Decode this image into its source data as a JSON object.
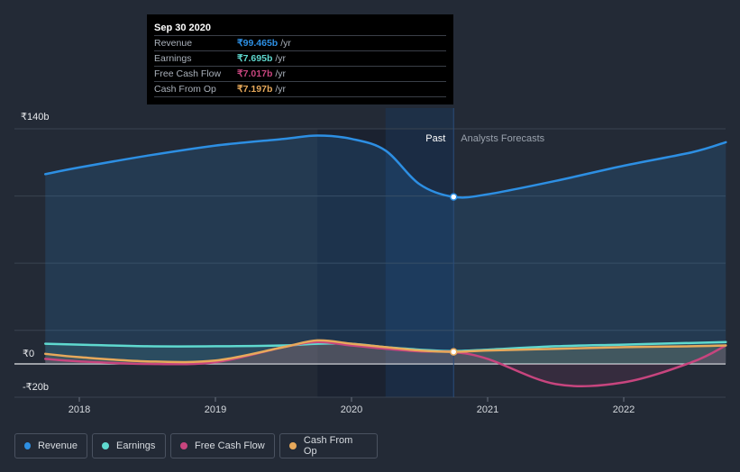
{
  "tooltip": {
    "date": "Sep 30 2020",
    "rows": [
      {
        "name": "Revenue",
        "value": "₹99.465b",
        "unit": "/yr",
        "color": "#2d8fe3"
      },
      {
        "name": "Earnings",
        "value": "₹7.695b",
        "unit": "/yr",
        "color": "#5fd9cf"
      },
      {
        "name": "Free Cash Flow",
        "value": "₹7.017b",
        "unit": "/yr",
        "color": "#c7457e"
      },
      {
        "name": "Cash From Op",
        "value": "₹7.197b",
        "unit": "/yr",
        "color": "#e7a95b"
      }
    ]
  },
  "labels": {
    "past": "Past",
    "forecast": "Analysts Forecasts"
  },
  "legend": [
    {
      "name": "Revenue",
      "color": "#2d8fe3"
    },
    {
      "name": "Earnings",
      "color": "#5fd9cf"
    },
    {
      "name": "Free Cash Flow",
      "color": "#c7457e"
    },
    {
      "name": "Cash From Op",
      "color": "#e7a95b"
    }
  ],
  "chart_data": {
    "type": "line",
    "y_ticks": [
      "₹140b",
      "₹0",
      "-₹20b"
    ],
    "ylim": [
      -20,
      140
    ],
    "x_ticks": [
      "2018",
      "2019",
      "2020",
      "2021",
      "2022"
    ],
    "xlim": [
      2017.7,
      2022.75
    ],
    "highlight_date": 2020.75,
    "series": [
      {
        "name": "Revenue",
        "color": "#2d8fe3",
        "x": [
          2017.75,
          2018.0,
          2018.5,
          2019.0,
          2019.5,
          2019.75,
          2020.0,
          2020.25,
          2020.5,
          2020.75,
          2021.0,
          2021.5,
          2022.0,
          2022.5,
          2022.75
        ],
        "y": [
          113,
          117,
          124,
          130,
          134,
          136,
          134,
          127,
          107,
          99.465,
          101,
          109,
          118,
          126,
          132
        ]
      },
      {
        "name": "Earnings",
        "color": "#5fd9cf",
        "x": [
          2017.75,
          2018.0,
          2018.5,
          2019.0,
          2019.5,
          2019.75,
          2020.0,
          2020.25,
          2020.5,
          2020.75,
          2021.0,
          2021.5,
          2022.0,
          2022.5,
          2022.75
        ],
        "y": [
          12,
          11.5,
          10.5,
          10.5,
          11,
          12,
          12,
          10,
          8.5,
          7.695,
          8.5,
          10.5,
          11.5,
          12.5,
          13
        ]
      },
      {
        "name": "Free Cash Flow",
        "color": "#c7457e",
        "x": [
          2017.75,
          2018.0,
          2018.5,
          2019.0,
          2019.5,
          2019.75,
          2020.0,
          2020.25,
          2020.5,
          2020.75,
          2021.0,
          2021.5,
          2022.0,
          2022.5,
          2022.75
        ],
        "y": [
          3,
          1.5,
          0,
          1,
          10,
          13,
          11,
          9,
          7.5,
          7.017,
          3,
          -12,
          -11,
          1,
          11
        ]
      },
      {
        "name": "Cash From Op",
        "color": "#e7a95b",
        "x": [
          2017.75,
          2018.0,
          2018.5,
          2019.0,
          2019.5,
          2019.75,
          2020.0,
          2020.25,
          2020.5,
          2020.75,
          2021.0,
          2021.5,
          2022.0,
          2022.5,
          2022.75
        ],
        "y": [
          6,
          4,
          1.5,
          2,
          10,
          14,
          12,
          10,
          8,
          7.197,
          8,
          9,
          10,
          10.5,
          11
        ]
      }
    ]
  }
}
